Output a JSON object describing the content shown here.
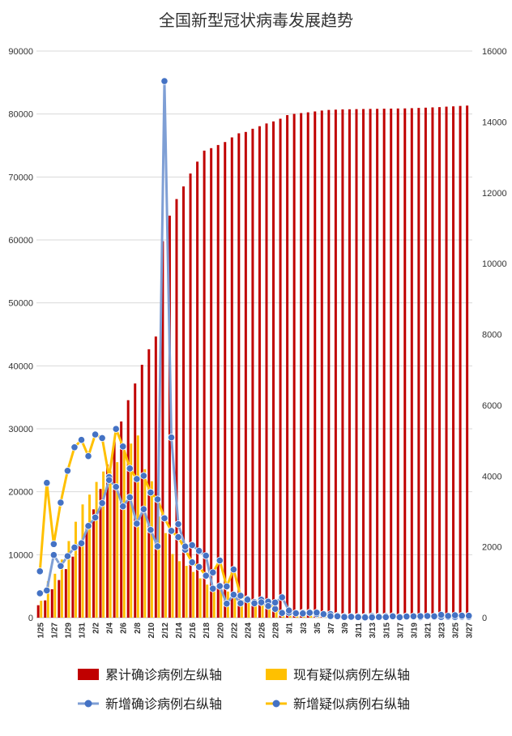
{
  "chart_data": {
    "type": "bar",
    "title": "全国新型冠状病毒发展趋势",
    "x": [
      "1/25",
      "1/26",
      "1/27",
      "1/28",
      "1/29",
      "1/30",
      "1/31",
      "2/1",
      "2/2",
      "2/3",
      "2/4",
      "2/5",
      "2/6",
      "2/7",
      "2/8",
      "2/9",
      "2/10",
      "2/11",
      "2/12",
      "2/13",
      "2/14",
      "2/15",
      "2/16",
      "2/17",
      "2/18",
      "2/19",
      "2/20",
      "2/21",
      "2/22",
      "2/23",
      "2/24",
      "2/25",
      "2/26",
      "2/27",
      "2/28",
      "2/29",
      "3/1",
      "3/2",
      "3/3",
      "3/4",
      "3/5",
      "3/6",
      "3/7",
      "3/8",
      "3/9",
      "3/10",
      "3/11",
      "3/12",
      "3/13",
      "3/14",
      "3/15",
      "3/16",
      "3/17",
      "3/18",
      "3/19",
      "3/20",
      "3/21",
      "3/22",
      "3/23",
      "3/24",
      "3/25",
      "3/26",
      "3/27"
    ],
    "xtick_labels": [
      "1/25",
      "1/27",
      "1/29",
      "1/31",
      "2/2",
      "2/4",
      "2/6",
      "2/8",
      "2/10",
      "2/12",
      "2/14",
      "2/16",
      "2/18",
      "2/20",
      "2/22",
      "2/24",
      "2/26",
      "2/28",
      "3/1",
      "3/3",
      "3/5",
      "3/7",
      "3/9",
      "3/11",
      "3/13",
      "3/15",
      "3/17",
      "3/19",
      "3/21",
      "3/23",
      "3/25",
      "3/27"
    ],
    "left_axis": {
      "ylim": [
        0,
        90000
      ],
      "ticks": [
        "0",
        "10000",
        "20000",
        "30000",
        "40000",
        "50000",
        "60000",
        "70000",
        "80000",
        "90000"
      ]
    },
    "right_axis": {
      "ylim": [
        0,
        16000
      ],
      "ticks": [
        "0",
        "2000",
        "4000",
        "6000",
        "8000",
        "10000",
        "12000",
        "14000",
        "16000"
      ]
    },
    "grid": true,
    "legend_position": "bottom",
    "series": [
      {
        "name": "累计确诊病例左纵轴",
        "kind": "bar",
        "axis": "left",
        "color": "#C00000",
        "values": [
          1975,
          2744,
          4515,
          5974,
          7711,
          9692,
          11791,
          14380,
          17205,
          20438,
          24324,
          28018,
          31161,
          34546,
          37198,
          40171,
          42638,
          44653,
          59804,
          63851,
          66492,
          68500,
          70548,
          72436,
          74185,
          74576,
          75077,
          75550,
          76288,
          76936,
          77150,
          77658,
          78064,
          78497,
          78824,
          79251,
          79824,
          80026,
          80151,
          80270,
          80409,
          80552,
          80651,
          80695,
          80735,
          80754,
          80778,
          80793,
          80813,
          80824,
          80844,
          80860,
          80881,
          80894,
          80928,
          80967,
          81008,
          81054,
          81093,
          81171,
          81218,
          81285,
          81340
        ]
      },
      {
        "name": "现有疑似病例左纵轴",
        "kind": "bar",
        "axis": "left",
        "color": "#FFC000",
        "values": [
          2684,
          5794,
          6973,
          9239,
          12167,
          15238,
          17988,
          19544,
          21558,
          23214,
          23260,
          24702,
          26359,
          27657,
          28942,
          23589,
          21675,
          16067,
          13435,
          10109,
          8969,
          8228,
          7264,
          6242,
          5248,
          4922,
          5206,
          4148,
          3434,
          2824,
          2491,
          2358,
          2308,
          2088,
          1418,
          851,
          715,
          587,
          520,
          522,
          482,
          460,
          421,
          351,
          315,
          226,
          189,
          156,
          124,
          119,
          102,
          120,
          96,
          89,
          75,
          82,
          91,
          84,
          81,
          72,
          67,
          64,
          62
        ]
      },
      {
        "name": "新增确诊病例右纵轴",
        "kind": "line",
        "axis": "right",
        "color": "#7F9FD5",
        "values": [
          688,
          769,
          1771,
          1459,
          1737,
          1982,
          2102,
          2590,
          2829,
          3235,
          3887,
          3694,
          3143,
          3399,
          2656,
          3062,
          2478,
          2015,
          15152,
          5090,
          2641,
          2009,
          2048,
          1886,
          1749,
          820,
          892,
          397,
          648,
          409,
          508,
          406,
          433,
          327,
          427,
          573,
          202,
          125,
          119,
          139,
          143,
          99,
          44,
          40,
          19,
          24,
          15,
          8,
          11,
          20,
          16,
          39,
          13,
          34,
          39,
          41,
          46,
          39,
          78,
          47,
          67,
          55,
          54
        ]
      },
      {
        "name": "新增疑似病例右纵轴",
        "kind": "line",
        "axis": "right",
        "color": "#FFC000",
        "values": [
          1309,
          3806,
          2077,
          3248,
          4148,
          4812,
          5019,
          4562,
          5173,
          5072,
          3971,
          5328,
          4833,
          4214,
          3916,
          4008,
          3536,
          3342,
          2807,
          2450,
          2277,
          1918,
          1563,
          1432,
          1185,
          1277,
          1614,
          882,
          1361,
          620,
          530,
          439,
          508,
          452,
          248,
          132,
          141,
          129,
          143,
          143,
          102,
          99,
          102,
          60,
          36,
          31,
          33,
          33,
          45,
          39,
          41,
          45,
          21,
          41,
          23,
          13,
          29,
          21,
          20,
          18,
          18,
          25,
          22
        ]
      }
    ]
  }
}
